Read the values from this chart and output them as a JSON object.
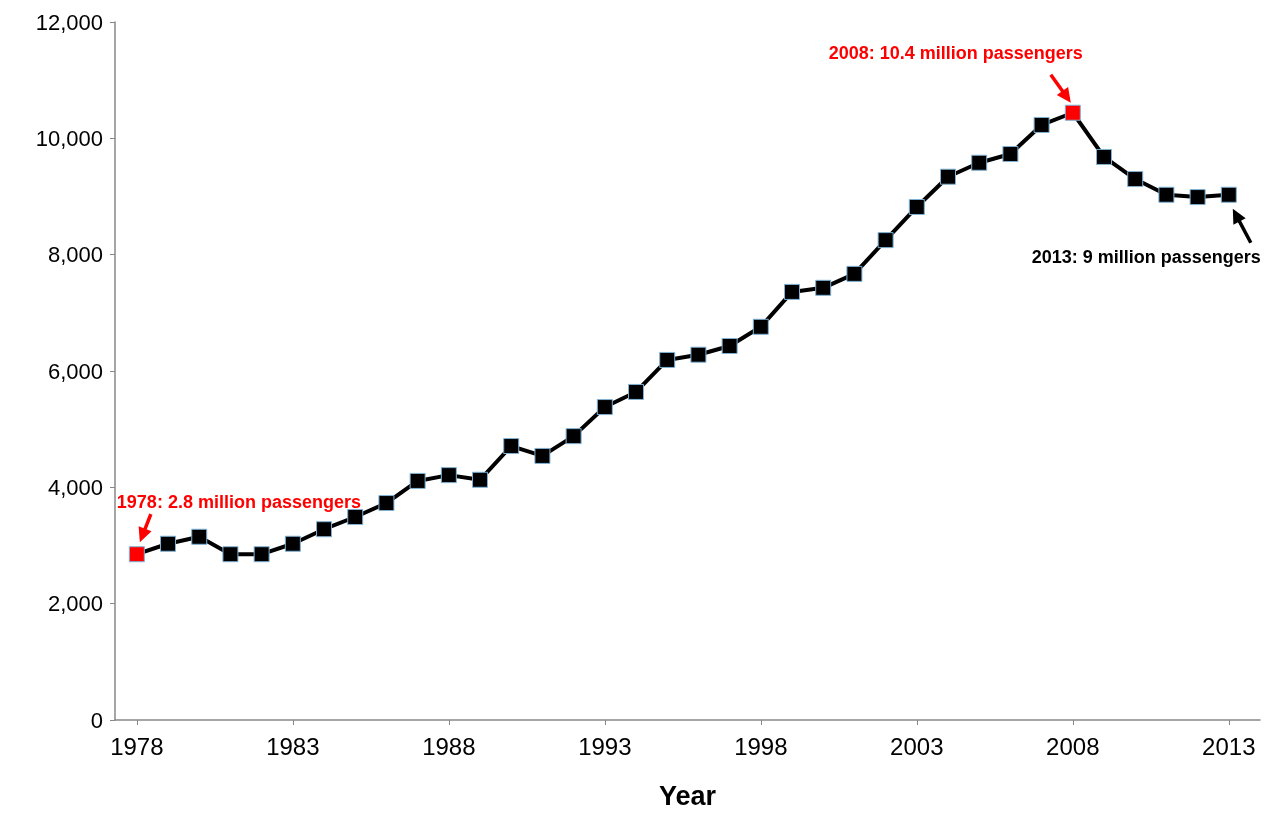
{
  "chart_data": {
    "type": "line",
    "xlabel": "Year",
    "marker": "square",
    "grid": false,
    "x": [
      1978,
      1979,
      1980,
      1981,
      1982,
      1983,
      1984,
      1985,
      1986,
      1987,
      1988,
      1989,
      1990,
      1991,
      1992,
      1993,
      1994,
      1995,
      1996,
      1997,
      1998,
      1999,
      2000,
      2001,
      2002,
      2003,
      2004,
      2005,
      2006,
      2007,
      2008,
      2009,
      2010,
      2011,
      2012,
      2013
    ],
    "series": [
      {
        "color": "#000000",
        "values": [
          2850,
          3030,
          3150,
          2850,
          2850,
          3030,
          3280,
          3490,
          3730,
          4110,
          4210,
          4130,
          4710,
          4540,
          4880,
          5380,
          5640,
          6190,
          6280,
          6430,
          6760,
          7360,
          7430,
          7670,
          8250,
          8820,
          9340,
          9580,
          9730,
          10230,
          10440,
          9680,
          9300,
          9030,
          8990,
          9030
        ],
        "colors": [
          "#ff0000",
          "#000000",
          "#000000",
          "#000000",
          "#000000",
          "#000000",
          "#000000",
          "#000000",
          "#000000",
          "#000000",
          "#000000",
          "#000000",
          "#000000",
          "#000000",
          "#000000",
          "#000000",
          "#000000",
          "#000000",
          "#000000",
          "#000000",
          "#000000",
          "#000000",
          "#000000",
          "#000000",
          "#000000",
          "#000000",
          "#000000",
          "#000000",
          "#000000",
          "#000000",
          "#ff0000",
          "#000000",
          "#000000",
          "#000000",
          "#000000",
          "#000000"
        ]
      }
    ],
    "xlim": [
      1977.3,
      2014
    ],
    "xticks": [
      1978,
      1983,
      1988,
      1993,
      1998,
      2003,
      2008,
      2013
    ],
    "ylim": [
      0,
      12000
    ],
    "yticks": [
      0,
      {
        "value": 2000,
        "label": "2,000"
      },
      {
        "value": 4000,
        "label": "4,000"
      },
      {
        "value": 6000,
        "label": "6,000"
      },
      {
        "value": 8000,
        "label": "8,000"
      },
      {
        "value": 10000,
        "label": "10,000"
      },
      {
        "value": 12000,
        "label": "12,000"
      }
    ],
    "annotations": [
      {
        "text": "1978: 2.8 million passengers",
        "x": 1978,
        "y": 2850
      },
      {
        "text": "2008: 10.4 million passengers",
        "x": 2008,
        "y": 10440
      },
      {
        "text": "2013: 9 million passengers",
        "x": 2013,
        "y": 9030
      }
    ]
  }
}
